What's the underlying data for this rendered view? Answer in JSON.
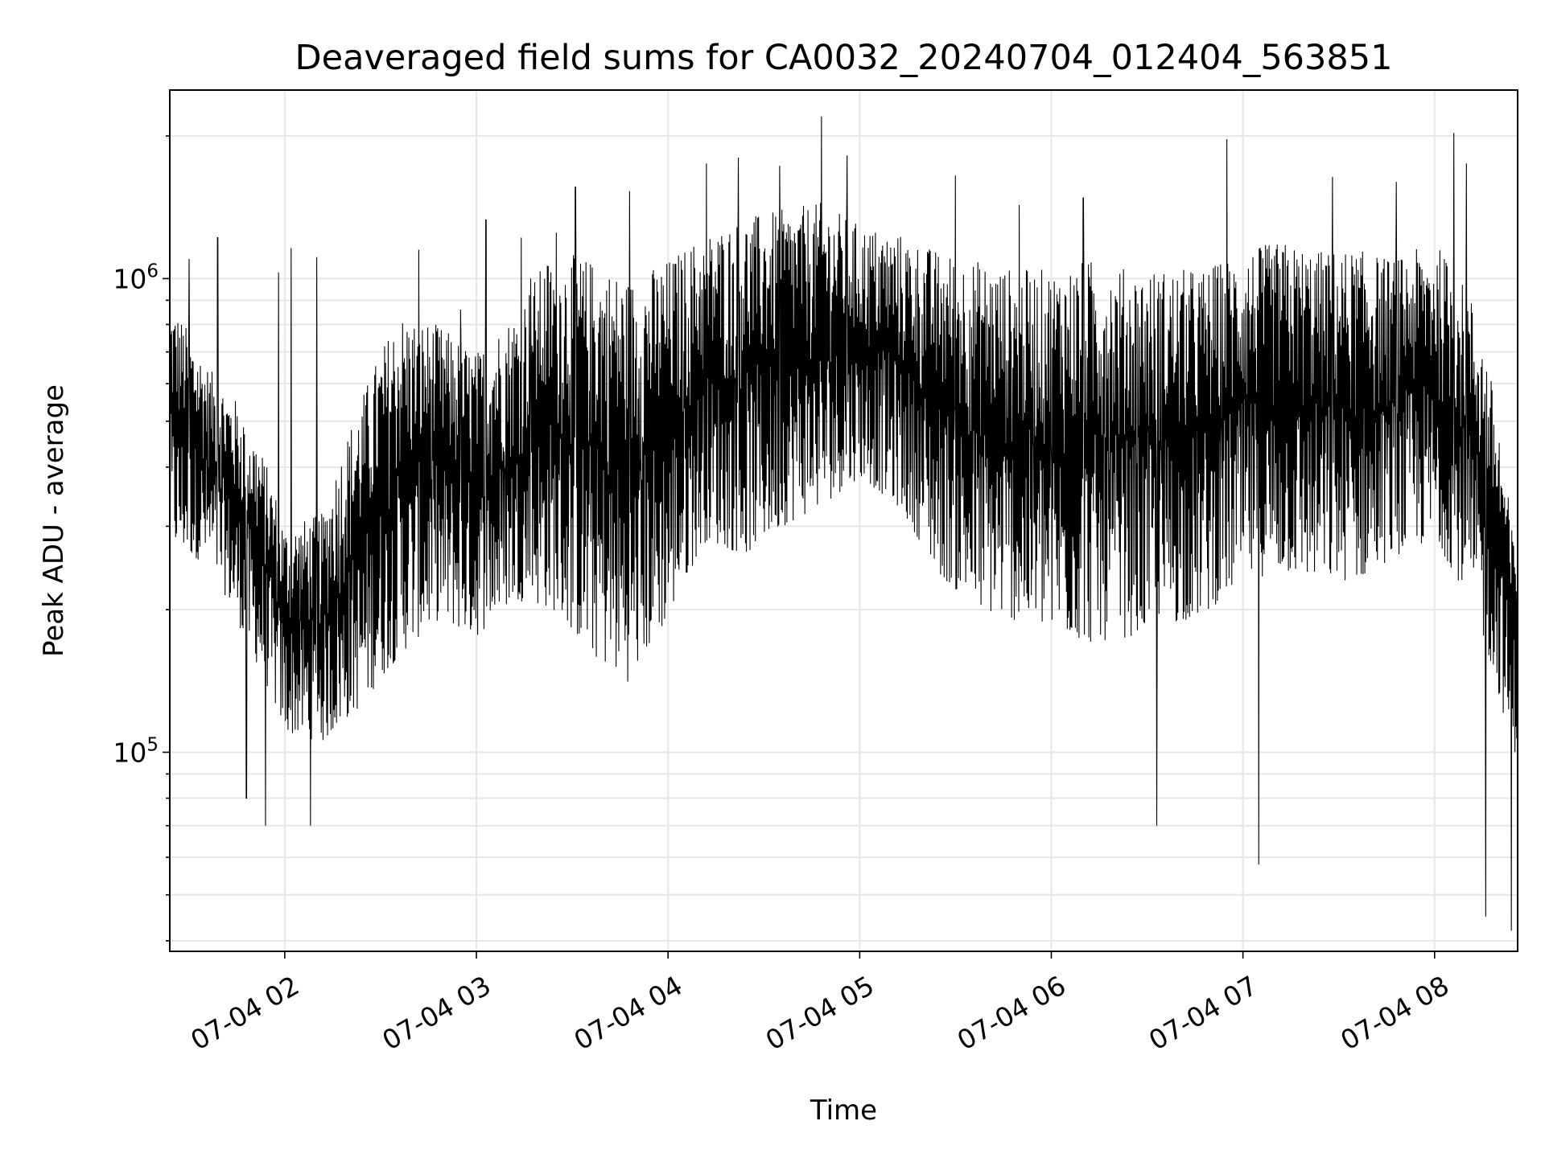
{
  "chart_data": {
    "type": "line",
    "title": "Deaveraged field sums for CA0032_20240704_012404_563851",
    "xlabel": "Time",
    "ylabel": "Peak ADU - average",
    "yscale": "log",
    "grid": true,
    "line_color": "#000000",
    "grid_color": "#e6e6e6",
    "xlim": [
      "2024-07-04 01:24",
      "2024-07-04 08:26"
    ],
    "ylim": [
      38000,
      2500000
    ],
    "x_ticks": [
      "2024-07-04 02:00",
      "2024-07-04 03:00",
      "2024-07-04 04:00",
      "2024-07-04 05:00",
      "2024-07-04 06:00",
      "2024-07-04 07:00",
      "2024-07-04 08:00"
    ],
    "x_tick_labels": [
      "07-04 02",
      "07-04 03",
      "07-04 04",
      "07-04 05",
      "07-04 06",
      "07-04 07",
      "07-04 08"
    ],
    "y_major_ticks": [
      100000,
      1000000
    ],
    "y_major_tick_labels": [
      {
        "base": "10",
        "exp": "5"
      },
      {
        "base": "10",
        "exp": "6"
      }
    ],
    "series": [
      {
        "values_approx": "dense oscillating signal sampled roughly every 7-8 s",
        "x_hours": [
          1.4,
          1.6,
          1.8,
          2.0,
          2.2,
          2.4,
          2.6,
          2.8,
          3.0,
          3.2,
          3.4,
          3.6,
          3.8,
          4.0,
          4.2,
          4.4,
          4.6,
          4.8,
          5.0,
          5.2,
          5.4,
          5.6,
          5.8,
          6.0,
          6.2,
          6.4,
          6.6,
          6.8,
          7.0,
          7.2,
          7.4,
          7.6,
          7.8,
          8.0,
          8.2,
          8.4
        ],
        "lower": [
          270000,
          250000,
          170000,
          110000,
          105000,
          125000,
          160000,
          190000,
          175000,
          210000,
          200000,
          160000,
          140000,
          190000,
          280000,
          260000,
          300000,
          330000,
          380000,
          330000,
          240000,
          200000,
          190000,
          180000,
          170000,
          175000,
          185000,
          195000,
          230000,
          240000,
          230000,
          230000,
          260000,
          280000,
          200000,
          100000
        ],
        "upper": [
          900000,
          650000,
          520000,
          300000,
          320000,
          560000,
          850000,
          800000,
          700000,
          850000,
          1150000,
          1100000,
          1000000,
          1100000,
          1250000,
          1350000,
          1400000,
          1450000,
          1300000,
          1250000,
          1150000,
          1100000,
          1050000,
          1050000,
          1100000,
          1050000,
          1050000,
          1050000,
          1150000,
          1200000,
          1150000,
          1150000,
          1100000,
          1200000,
          900000,
          300000
        ],
        "spikes": [
          {
            "x": "2024-07-04 01:30",
            "y": 1100000
          },
          {
            "x": "2024-07-04 01:39",
            "y": 1220000
          },
          {
            "x": "2024-07-04 01:48",
            "y": 80000
          },
          {
            "x": "2024-07-04 01:54",
            "y": 70000
          },
          {
            "x": "2024-07-04 01:58",
            "y": 1030000
          },
          {
            "x": "2024-07-04 02:02",
            "y": 1160000
          },
          {
            "x": "2024-07-04 02:08",
            "y": 70000
          },
          {
            "x": "2024-07-04 02:10",
            "y": 1110000
          },
          {
            "x": "2024-07-04 02:42",
            "y": 1150000
          },
          {
            "x": "2024-07-04 02:55",
            "y": 860000
          },
          {
            "x": "2024-07-04 03:03",
            "y": 1330000
          },
          {
            "x": "2024-07-04 03:14",
            "y": 1220000
          },
          {
            "x": "2024-07-04 03:17",
            "y": 1000000
          },
          {
            "x": "2024-07-04 03:25",
            "y": 1250000
          },
          {
            "x": "2024-07-04 03:31",
            "y": 1560000
          },
          {
            "x": "2024-07-04 03:48",
            "y": 1530000
          },
          {
            "x": "2024-07-04 04:12",
            "y": 1750000
          },
          {
            "x": "2024-07-04 04:22",
            "y": 1800000
          },
          {
            "x": "2024-07-04 04:35",
            "y": 1730000
          },
          {
            "x": "2024-07-04 04:48",
            "y": 2200000
          },
          {
            "x": "2024-07-04 04:56",
            "y": 1820000
          },
          {
            "x": "2024-07-04 05:30",
            "y": 1650000
          },
          {
            "x": "2024-07-04 05:50",
            "y": 1430000
          },
          {
            "x": "2024-07-04 06:10",
            "y": 1480000
          },
          {
            "x": "2024-07-04 06:33",
            "y": 70000
          },
          {
            "x": "2024-07-04 06:55",
            "y": 1970000
          },
          {
            "x": "2024-07-04 07:05",
            "y": 58000
          },
          {
            "x": "2024-07-04 07:28",
            "y": 1640000
          },
          {
            "x": "2024-07-04 07:48",
            "y": 1600000
          },
          {
            "x": "2024-07-04 08:06",
            "y": 2030000
          },
          {
            "x": "2024-07-04 08:10",
            "y": 1750000
          },
          {
            "x": "2024-07-04 08:16",
            "y": 45000
          },
          {
            "x": "2024-07-04 08:24",
            "y": 42000
          }
        ]
      }
    ]
  }
}
